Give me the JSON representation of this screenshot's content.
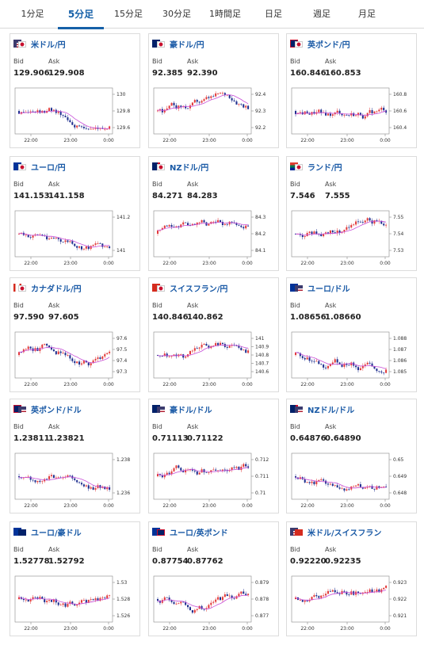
{
  "tabs": [
    {
      "label": "1分足",
      "active": false
    },
    {
      "label": "5分足",
      "active": true
    },
    {
      "label": "15分足",
      "active": false
    },
    {
      "label": "30分足",
      "active": false
    },
    {
      "label": "1時間足",
      "active": false
    },
    {
      "label": "日足",
      "active": false
    },
    {
      "label": "週足",
      "active": false
    },
    {
      "label": "月足",
      "active": false
    }
  ],
  "labels": {
    "bid": "Bid",
    "ask": "Ask"
  },
  "colors": {
    "up": "#e23b3b",
    "down": "#1f2f8f",
    "ma": "#c84fd8",
    "accent": "#1560a8"
  },
  "cards": [
    {
      "pair": "米ドル/円",
      "flags": [
        "us",
        "jp"
      ],
      "bid": "129.906",
      "ask": "129.908",
      "chart_data": {
        "type": "candlestick",
        "yticks": [
          "130",
          "129.8",
          "129.6"
        ],
        "xticks": [
          "22:00",
          "23:00",
          "0:00"
        ]
      }
    },
    {
      "pair": "豪ドル/円",
      "flags": [
        "au",
        "jp"
      ],
      "bid": "92.385",
      "ask": "92.390",
      "chart_data": {
        "type": "candlestick",
        "yticks": [
          "92.4",
          "92.3",
          "92.2"
        ],
        "xticks": [
          "22:00",
          "23:00",
          "0:00"
        ]
      }
    },
    {
      "pair": "英ポンド/円",
      "flags": [
        "gb",
        "jp"
      ],
      "bid": "160.846",
      "ask": "160.853",
      "chart_data": {
        "type": "candlestick",
        "yticks": [
          "160.8",
          "160.6",
          "160.4"
        ],
        "xticks": [
          "22:00",
          "23:00",
          "0:00"
        ]
      }
    },
    {
      "pair": "ユーロ/円",
      "flags": [
        "eu",
        "jp"
      ],
      "bid": "141.153",
      "ask": "141.158",
      "chart_data": {
        "type": "candlestick",
        "yticks": [
          "141.2",
          "141"
        ],
        "xticks": [
          "22:00",
          "23:00",
          "0:00"
        ]
      }
    },
    {
      "pair": "NZドル/円",
      "flags": [
        "nz",
        "jp"
      ],
      "bid": "84.271",
      "ask": "84.283",
      "chart_data": {
        "type": "candlestick",
        "yticks": [
          "84.3",
          "84.2",
          "84.1"
        ],
        "xticks": [
          "22:00",
          "23:00",
          "0:00"
        ]
      }
    },
    {
      "pair": "ランド/円",
      "flags": [
        "za",
        "jp"
      ],
      "bid": "7.546",
      "ask": "7.555",
      "chart_data": {
        "type": "candlestick",
        "yticks": [
          "7.55",
          "7.54",
          "7.53"
        ],
        "xticks": [
          "22:00",
          "23:00",
          "0:00"
        ]
      }
    },
    {
      "pair": "カナダドル/円",
      "flags": [
        "ca",
        "jp"
      ],
      "bid": "97.590",
      "ask": "97.605",
      "chart_data": {
        "type": "candlestick",
        "yticks": [
          "97.6",
          "97.5",
          "97.4",
          "97.3"
        ],
        "xticks": [
          "22:00",
          "23:00",
          "0:00"
        ]
      }
    },
    {
      "pair": "スイスフラン/円",
      "flags": [
        "ch",
        "jp"
      ],
      "bid": "140.846",
      "ask": "140.862",
      "chart_data": {
        "type": "candlestick",
        "yticks": [
          "141",
          "140.9",
          "140.8",
          "140.7",
          "140.6"
        ],
        "xticks": [
          "22:00",
          "23:00",
          "0:00"
        ]
      }
    },
    {
      "pair": "ユーロ/ドル",
      "flags": [
        "eu",
        "us"
      ],
      "bid": "1.08656",
      "ask": "1.08660",
      "chart_data": {
        "type": "candlestick",
        "yticks": [
          "1.088",
          "1.087",
          "1.086",
          "1.085"
        ],
        "xticks": [
          "22:00",
          "23:00",
          "0:00"
        ]
      }
    },
    {
      "pair": "英ポンド/ドル",
      "flags": [
        "gb",
        "us"
      ],
      "bid": "1.23811",
      "ask": "1.23821",
      "chart_data": {
        "type": "candlestick",
        "yticks": [
          "1.238",
          "1.236"
        ],
        "xticks": [
          "22:00",
          "23:00",
          "0:00"
        ]
      }
    },
    {
      "pair": "豪ドル/ドル",
      "flags": [
        "au",
        "us"
      ],
      "bid": "0.71113",
      "ask": "0.71122",
      "chart_data": {
        "type": "candlestick",
        "yticks": [
          "0.712",
          "0.711",
          "0.71"
        ],
        "xticks": [
          "22:00",
          "23:00",
          "0:00"
        ]
      }
    },
    {
      "pair": "NZドル/ドル",
      "flags": [
        "nz",
        "us"
      ],
      "bid": "0.64876",
      "ask": "0.64890",
      "chart_data": {
        "type": "candlestick",
        "yticks": [
          "0.65",
          "0.649",
          "0.648"
        ],
        "xticks": [
          "22:00",
          "23:00",
          "0:00"
        ]
      }
    },
    {
      "pair": "ユーロ/豪ドル",
      "flags": [
        "eu",
        "au"
      ],
      "bid": "1.52778",
      "ask": "1.52792",
      "chart_data": {
        "type": "candlestick",
        "yticks": [
          "1.53",
          "1.528",
          "1.526"
        ],
        "xticks": [
          "22:00",
          "23:00",
          "0:00"
        ]
      }
    },
    {
      "pair": "ユーロ/英ポンド",
      "flags": [
        "eu",
        "gb"
      ],
      "bid": "0.87754",
      "ask": "0.87762",
      "chart_data": {
        "type": "candlestick",
        "yticks": [
          "0.879",
          "0.878",
          "0.877"
        ],
        "xticks": [
          "22:00",
          "23:00",
          "0:00"
        ]
      }
    },
    {
      "pair": "米ドル/スイスフラン",
      "flags": [
        "us",
        "ch"
      ],
      "bid": "0.92220",
      "ask": "0.92235",
      "chart_data": {
        "type": "candlestick",
        "yticks": [
          "0.923",
          "0.922",
          "0.921"
        ],
        "xticks": [
          "22:00",
          "23:00",
          "0:00"
        ]
      }
    }
  ]
}
